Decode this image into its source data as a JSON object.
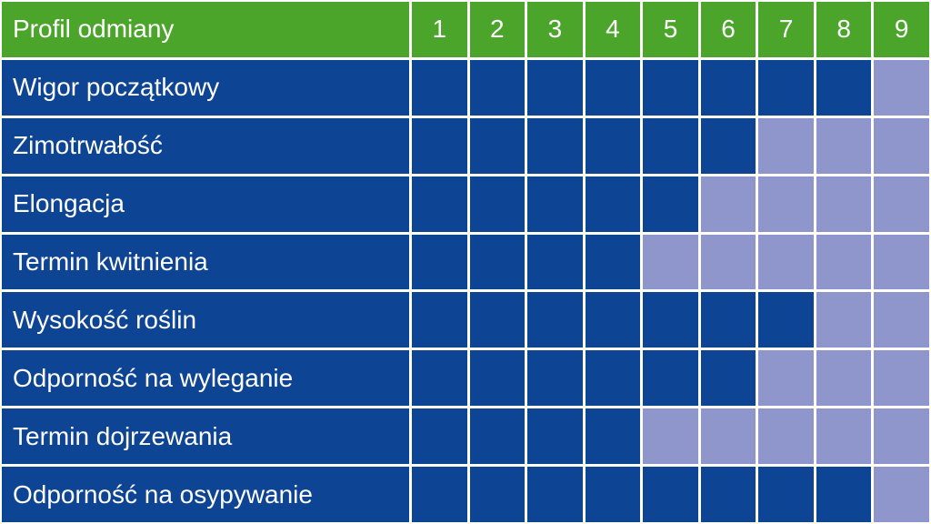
{
  "colors": {
    "header": "#4ca52b",
    "filled": "#0e4494",
    "empty": "#8f96cc"
  },
  "header": {
    "label": "Profil odmiany",
    "scale": [
      "1",
      "2",
      "3",
      "4",
      "5",
      "6",
      "7",
      "8",
      "9"
    ]
  },
  "chart_data": {
    "type": "table",
    "title": "",
    "scale_min": 1,
    "scale_max": 9,
    "categories": [
      "Wigor początkowy",
      "Zimotrwałość",
      "Elongacja",
      "Termin kwitnienia",
      "Wysokość roślin",
      "Odporność na wyleganie",
      "Termin dojrzewania",
      "Odporność na osypywanie"
    ],
    "values": [
      8,
      6,
      5,
      4,
      7,
      6,
      4,
      8
    ]
  }
}
